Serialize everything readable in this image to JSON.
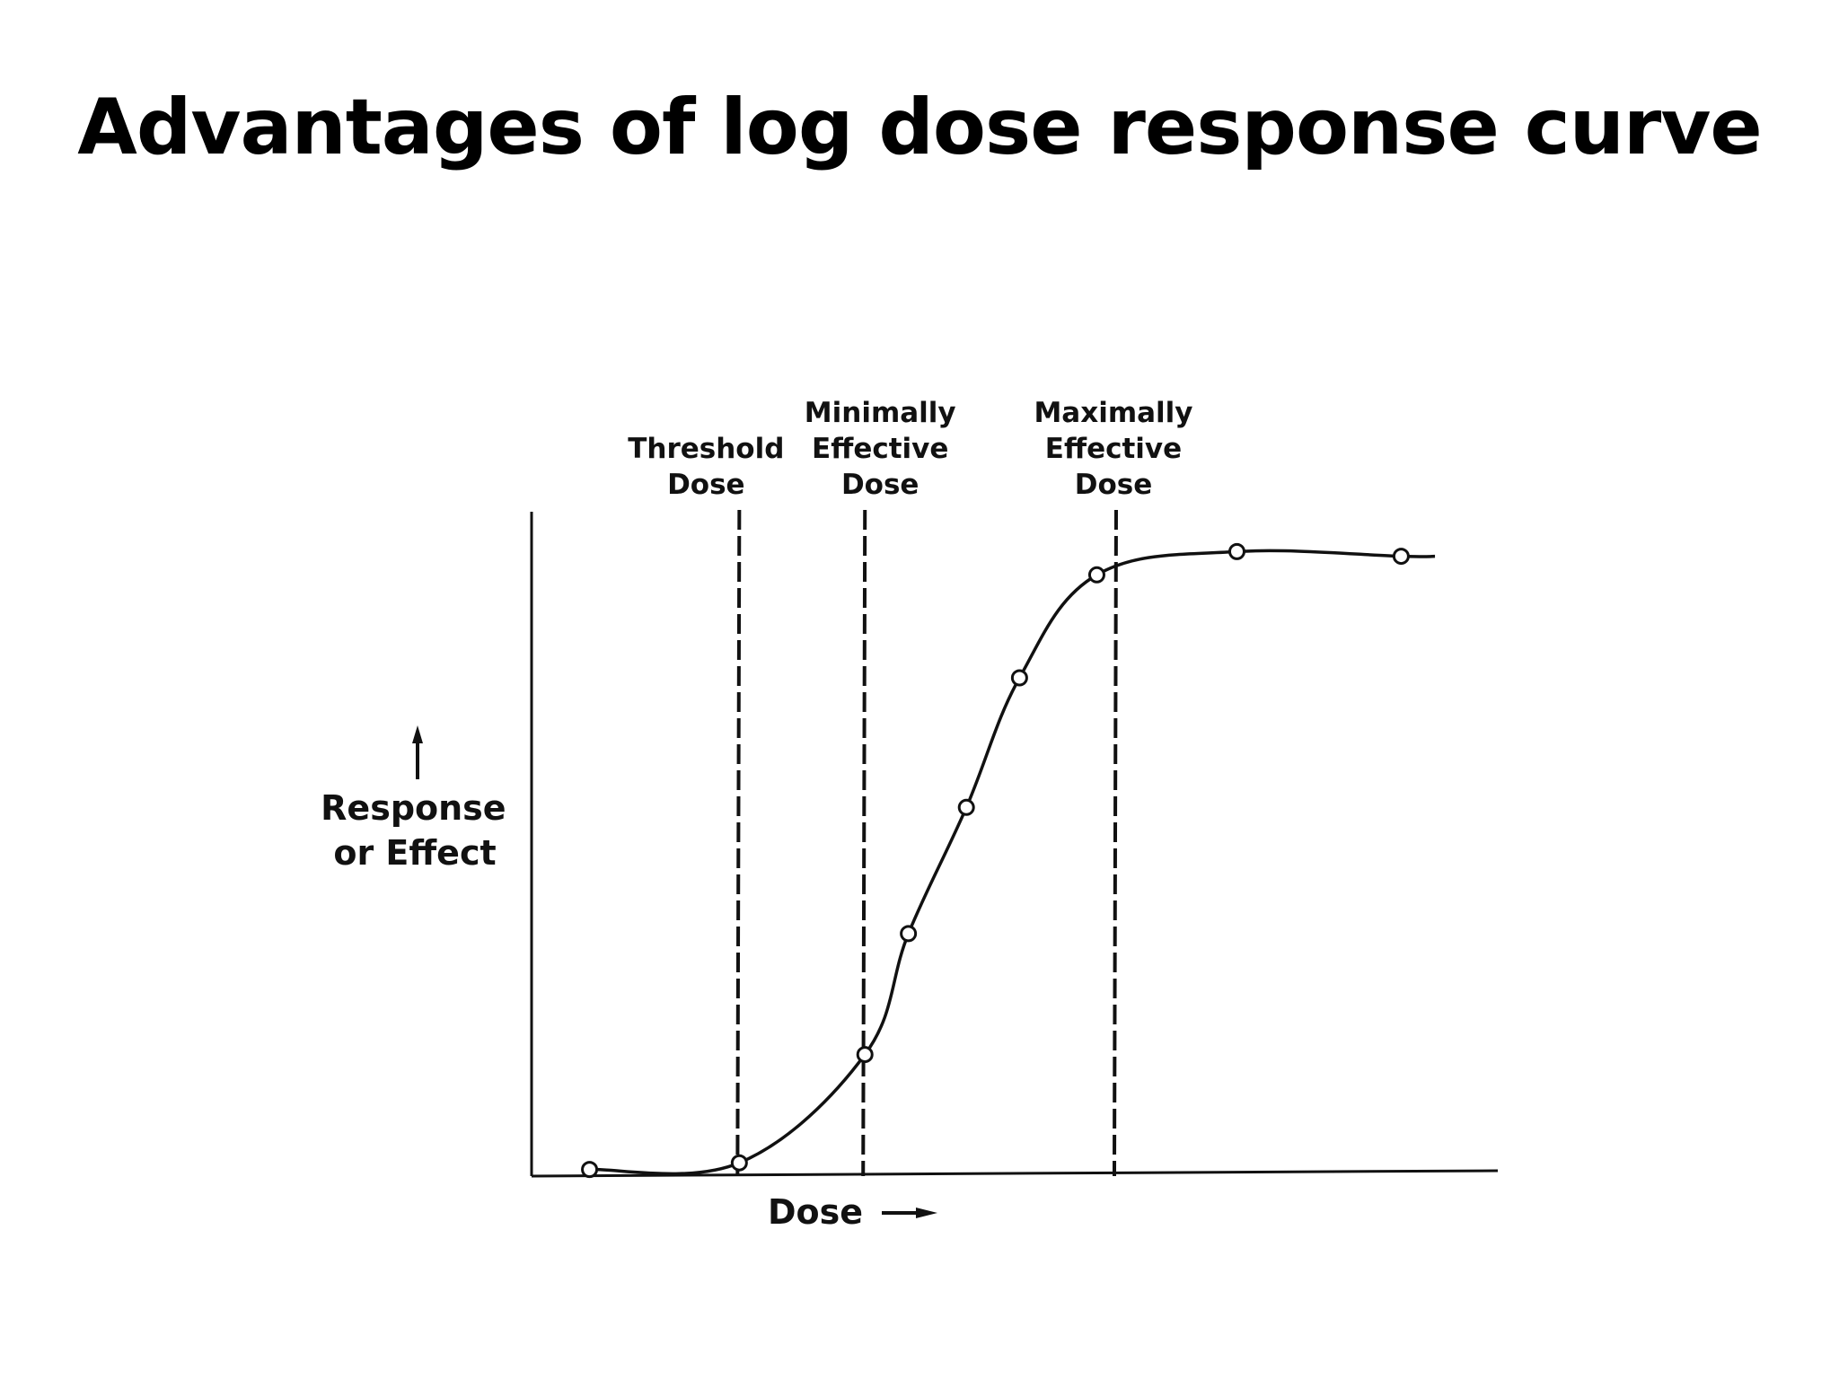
{
  "slide": {
    "title": "Advantages of log dose response curve"
  },
  "chart_data": {
    "type": "line",
    "title": "",
    "xlabel": "Dose",
    "ylabel": "Response or Effect",
    "xlim": [
      0,
      1
    ],
    "ylim": [
      0,
      1
    ],
    "grid": false,
    "legend": "none",
    "series": [
      {
        "name": "",
        "points": [
          {
            "x": 0.06,
            "y": 0.01
          },
          {
            "x": 0.215,
            "y": 0.02
          },
          {
            "x": 0.345,
            "y": 0.183
          },
          {
            "x": 0.39,
            "y": 0.365
          },
          {
            "x": 0.45,
            "y": 0.555
          },
          {
            "x": 0.505,
            "y": 0.75
          },
          {
            "x": 0.585,
            "y": 0.905
          },
          {
            "x": 0.73,
            "y": 0.94
          },
          {
            "x": 0.9,
            "y": 0.933
          }
        ]
      }
    ],
    "curve_end_x": 0.935,
    "reference_lines": [
      {
        "label": [
          "Threshold",
          "Dose"
        ],
        "x": 0.215
      },
      {
        "label": [
          "Minimally",
          "Effective",
          "Dose"
        ],
        "x": 0.345
      },
      {
        "label": [
          "Maximally",
          "Effective",
          "Dose"
        ],
        "x": 0.605
      }
    ],
    "colors": {
      "line": "#111111",
      "marker_fill": "#ffffff",
      "marker_stroke": "#111111"
    }
  }
}
